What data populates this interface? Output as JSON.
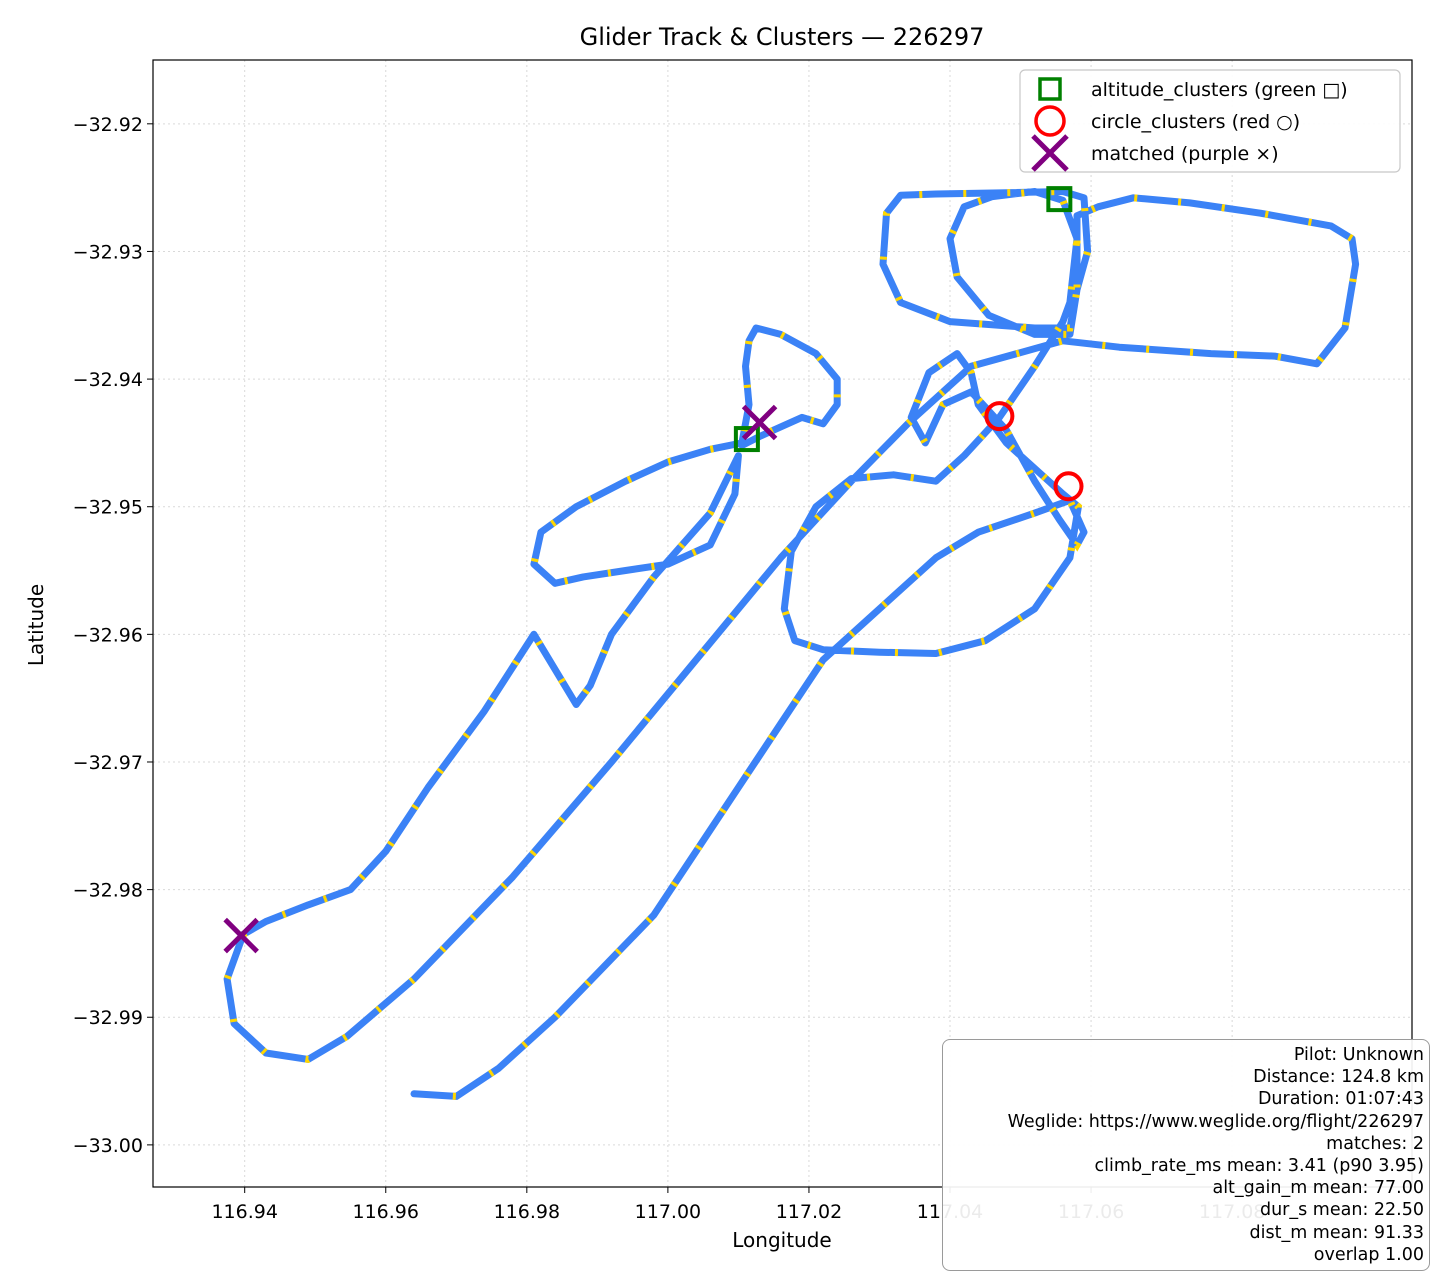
{
  "chart_data": {
    "type": "scatter",
    "title": "Glider Track & Clusters — 226297",
    "xlabel": "Longitude",
    "ylabel": "Latitude",
    "xlim": [
      116.927,
      117.1055
    ],
    "ylim": [
      -33.0033,
      -32.915
    ],
    "x_ticks": [
      116.94,
      116.96,
      116.98,
      117.0,
      117.02,
      117.04,
      117.06,
      117.08
    ],
    "x_tick_labels": [
      "116.94",
      "116.96",
      "116.98",
      "117.00",
      "117.02",
      "117.04",
      "117.06",
      "117.08"
    ],
    "y_ticks": [
      -32.92,
      -32.93,
      -32.94,
      -32.95,
      -32.96,
      -32.97,
      -32.98,
      -32.99,
      -33.0
    ],
    "y_tick_labels": [
      "−32.92",
      "−32.93",
      "−32.94",
      "−32.95",
      "−32.96",
      "−32.97",
      "−32.98",
      "−32.99",
      "−33.00"
    ],
    "grid": true,
    "legend_position": "top-right",
    "colors": {
      "track": "#3b82f6",
      "climb": "#ffd700",
      "altitude": "#008000",
      "circle": "#ff0000",
      "matched": "#800080"
    },
    "track": [
      [
        116.9398,
        -32.9835
      ],
      [
        116.9375,
        -32.987
      ],
      [
        116.9385,
        -32.9905
      ],
      [
        116.943,
        -32.9928
      ],
      [
        116.949,
        -32.9933
      ],
      [
        116.9545,
        -32.9915
      ],
      [
        116.964,
        -32.987
      ],
      [
        116.978,
        -32.979
      ],
      [
        116.992,
        -32.97
      ],
      [
        117.004,
        -32.962
      ],
      [
        117.016,
        -32.954
      ],
      [
        117.026,
        -32.948
      ],
      [
        117.034,
        -32.9435
      ],
      [
        117.043,
        -32.939
      ],
      [
        117.056,
        -32.937
      ],
      [
        117.064,
        -32.9375
      ],
      [
        117.077,
        -32.938
      ],
      [
        117.086,
        -32.9382
      ],
      [
        117.092,
        -32.9388
      ],
      [
        117.096,
        -32.936
      ],
      [
        117.0975,
        -32.931
      ],
      [
        117.097,
        -32.929
      ],
      [
        117.094,
        -32.928
      ],
      [
        117.084,
        -32.927
      ],
      [
        117.074,
        -32.9262
      ],
      [
        117.066,
        -32.9258
      ],
      [
        117.061,
        -32.9265
      ],
      [
        117.058,
        -32.9272
      ],
      [
        117.058,
        -32.933
      ],
      [
        117.057,
        -32.936
      ],
      [
        117.052,
        -32.936
      ],
      [
        117.04,
        -32.9355
      ],
      [
        117.033,
        -32.934
      ],
      [
        117.0305,
        -32.931
      ],
      [
        117.031,
        -32.927
      ],
      [
        117.033,
        -32.9256
      ],
      [
        117.038,
        -32.9255
      ],
      [
        117.048,
        -32.9254
      ],
      [
        117.056,
        -32.9253
      ],
      [
        117.059,
        -32.9258
      ],
      [
        117.0595,
        -32.93
      ],
      [
        117.058,
        -32.933
      ],
      [
        117.057,
        -32.9365
      ],
      [
        117.052,
        -32.9365
      ],
      [
        117.0455,
        -32.935
      ],
      [
        117.041,
        -32.932
      ],
      [
        117.04,
        -32.929
      ],
      [
        117.042,
        -32.9265
      ],
      [
        117.046,
        -32.9257
      ],
      [
        117.052,
        -32.9253
      ],
      [
        117.056,
        -32.926
      ],
      [
        117.058,
        -32.929
      ],
      [
        117.057,
        -32.934
      ],
      [
        117.056,
        -32.9355
      ],
      [
        117.052,
        -32.939
      ],
      [
        117.047,
        -32.943
      ],
      [
        117.042,
        -32.946
      ],
      [
        117.038,
        -32.948
      ],
      [
        117.032,
        -32.9475
      ],
      [
        117.026,
        -32.9478
      ],
      [
        117.021,
        -32.95
      ],
      [
        117.0175,
        -32.9535
      ],
      [
        117.0165,
        -32.958
      ],
      [
        117.018,
        -32.9605
      ],
      [
        117.022,
        -32.9612
      ],
      [
        117.03,
        -32.9614
      ],
      [
        117.038,
        -32.9615
      ],
      [
        117.045,
        -32.9605
      ],
      [
        117.052,
        -32.958
      ],
      [
        117.057,
        -32.954
      ],
      [
        117.0582,
        -32.95
      ],
      [
        117.056,
        -32.949
      ],
      [
        117.054,
        -32.948
      ],
      [
        117.048,
        -32.945
      ],
      [
        117.044,
        -32.942
      ],
      [
        117.043,
        -32.9395
      ],
      [
        117.041,
        -32.938
      ],
      [
        117.037,
        -32.9395
      ],
      [
        117.0345,
        -32.943
      ],
      [
        117.0365,
        -32.945
      ],
      [
        117.039,
        -32.942
      ],
      [
        117.043,
        -32.941
      ],
      [
        117.048,
        -32.944
      ],
      [
        117.052,
        -32.948
      ],
      [
        117.0555,
        -32.951
      ],
      [
        117.058,
        -32.953
      ],
      [
        117.059,
        -32.952
      ],
      [
        117.057,
        -32.9495
      ],
      [
        117.052,
        -32.9505
      ],
      [
        117.044,
        -32.952
      ],
      [
        117.038,
        -32.954
      ],
      [
        117.03,
        -32.958
      ],
      [
        117.022,
        -32.962
      ],
      [
        117.016,
        -32.967
      ],
      [
        117.01,
        -32.972
      ],
      [
        117.004,
        -32.977
      ],
      [
        116.998,
        -32.982
      ],
      [
        116.991,
        -32.986
      ],
      [
        116.984,
        -32.99
      ],
      [
        116.976,
        -32.994
      ],
      [
        116.97,
        -32.9962
      ],
      [
        116.964,
        -32.996
      ]
    ],
    "track_west": [
      [
        116.9398,
        -32.9835
      ],
      [
        116.943,
        -32.9825
      ],
      [
        116.949,
        -32.9812
      ],
      [
        116.955,
        -32.98
      ],
      [
        116.96,
        -32.977
      ],
      [
        116.966,
        -32.972
      ],
      [
        116.974,
        -32.966
      ],
      [
        116.981,
        -32.96
      ],
      [
        116.987,
        -32.9655
      ],
      [
        116.989,
        -32.964
      ],
      [
        116.992,
        -32.96
      ],
      [
        116.998,
        -32.9555
      ],
      [
        117.006,
        -32.9505
      ],
      [
        117.01,
        -32.946
      ],
      [
        117.0095,
        -32.949
      ],
      [
        117.006,
        -32.953
      ],
      [
        117.0,
        -32.9545
      ],
      [
        116.994,
        -32.955
      ],
      [
        116.988,
        -32.9555
      ],
      [
        116.984,
        -32.956
      ],
      [
        116.981,
        -32.9545
      ],
      [
        116.982,
        -32.952
      ],
      [
        116.987,
        -32.95
      ],
      [
        116.994,
        -32.948
      ],
      [
        117.0,
        -32.9465
      ],
      [
        117.006,
        -32.9455
      ],
      [
        117.0105,
        -32.945
      ],
      [
        117.0115,
        -32.942
      ],
      [
        117.011,
        -32.939
      ],
      [
        117.0115,
        -32.937
      ],
      [
        117.0125,
        -32.936
      ],
      [
        117.016,
        -32.9365
      ],
      [
        117.021,
        -32.938
      ],
      [
        117.024,
        -32.94
      ],
      [
        117.024,
        -32.942
      ],
      [
        117.022,
        -32.9435
      ],
      [
        117.019,
        -32.943
      ],
      [
        117.015,
        -32.944
      ],
      [
        117.013,
        -32.9445
      ],
      [
        117.0105,
        -32.9452
      ]
    ],
    "altitude_clusters": [
      [
        117.0112,
        -32.9447
      ],
      [
        117.0555,
        -32.9259
      ]
    ],
    "circle_clusters": [
      [
        117.047,
        -32.9429
      ],
      [
        117.0568,
        -32.9484
      ]
    ],
    "matched": [
      [
        116.9395,
        -32.9836
      ],
      [
        117.013,
        -32.9434
      ]
    ],
    "legend": [
      {
        "key": "altitude",
        "label": "altitude_clusters (green □)"
      },
      {
        "key": "circle",
        "label": "circle_clusters (red ○)"
      },
      {
        "key": "matched",
        "label": "matched (purple ×)"
      }
    ]
  },
  "info": [
    "Pilot: Unknown",
    "Distance: 124.8 km",
    "Duration: 01:07:43",
    "Weglide: https://www.weglide.org/flight/226297",
    "matches: 2",
    "climb_rate_ms mean: 3.41 (p90 3.95)",
    "alt_gain_m mean: 77.00",
    "dur_s mean: 22.50",
    "dist_m mean: 91.33",
    "overlap 1.00"
  ]
}
